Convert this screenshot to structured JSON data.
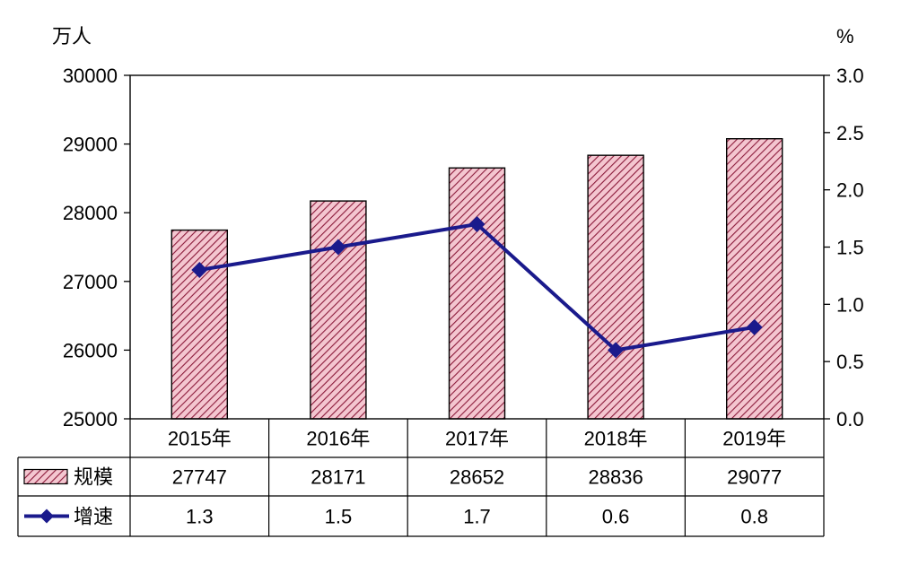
{
  "chart_data": {
    "type": "bar",
    "categories": [
      "2015年",
      "2016年",
      "2017年",
      "2018年",
      "2019年"
    ],
    "series": [
      {
        "name": "规模",
        "type": "bar",
        "axis": "left",
        "values": [
          27747,
          28171,
          28652,
          28836,
          29077
        ],
        "fill": "#f4c6d0",
        "hatch": "#8b1a3a"
      },
      {
        "name": "增速",
        "type": "line",
        "axis": "right",
        "values": [
          1.3,
          1.5,
          1.7,
          0.6,
          0.8
        ],
        "color": "#1a1a8c"
      }
    ],
    "ylabel": "万人",
    "y2label": "%",
    "ylim": [
      25000,
      30000
    ],
    "yticks": [
      25000,
      26000,
      27000,
      28000,
      29000,
      30000
    ],
    "y2lim": [
      0,
      3
    ],
    "y2ticks": [
      "0.0",
      "0.5",
      "1.0",
      "1.5",
      "2.0",
      "2.5",
      "3.0"
    ],
    "grid": false,
    "legend": "data-table"
  }
}
